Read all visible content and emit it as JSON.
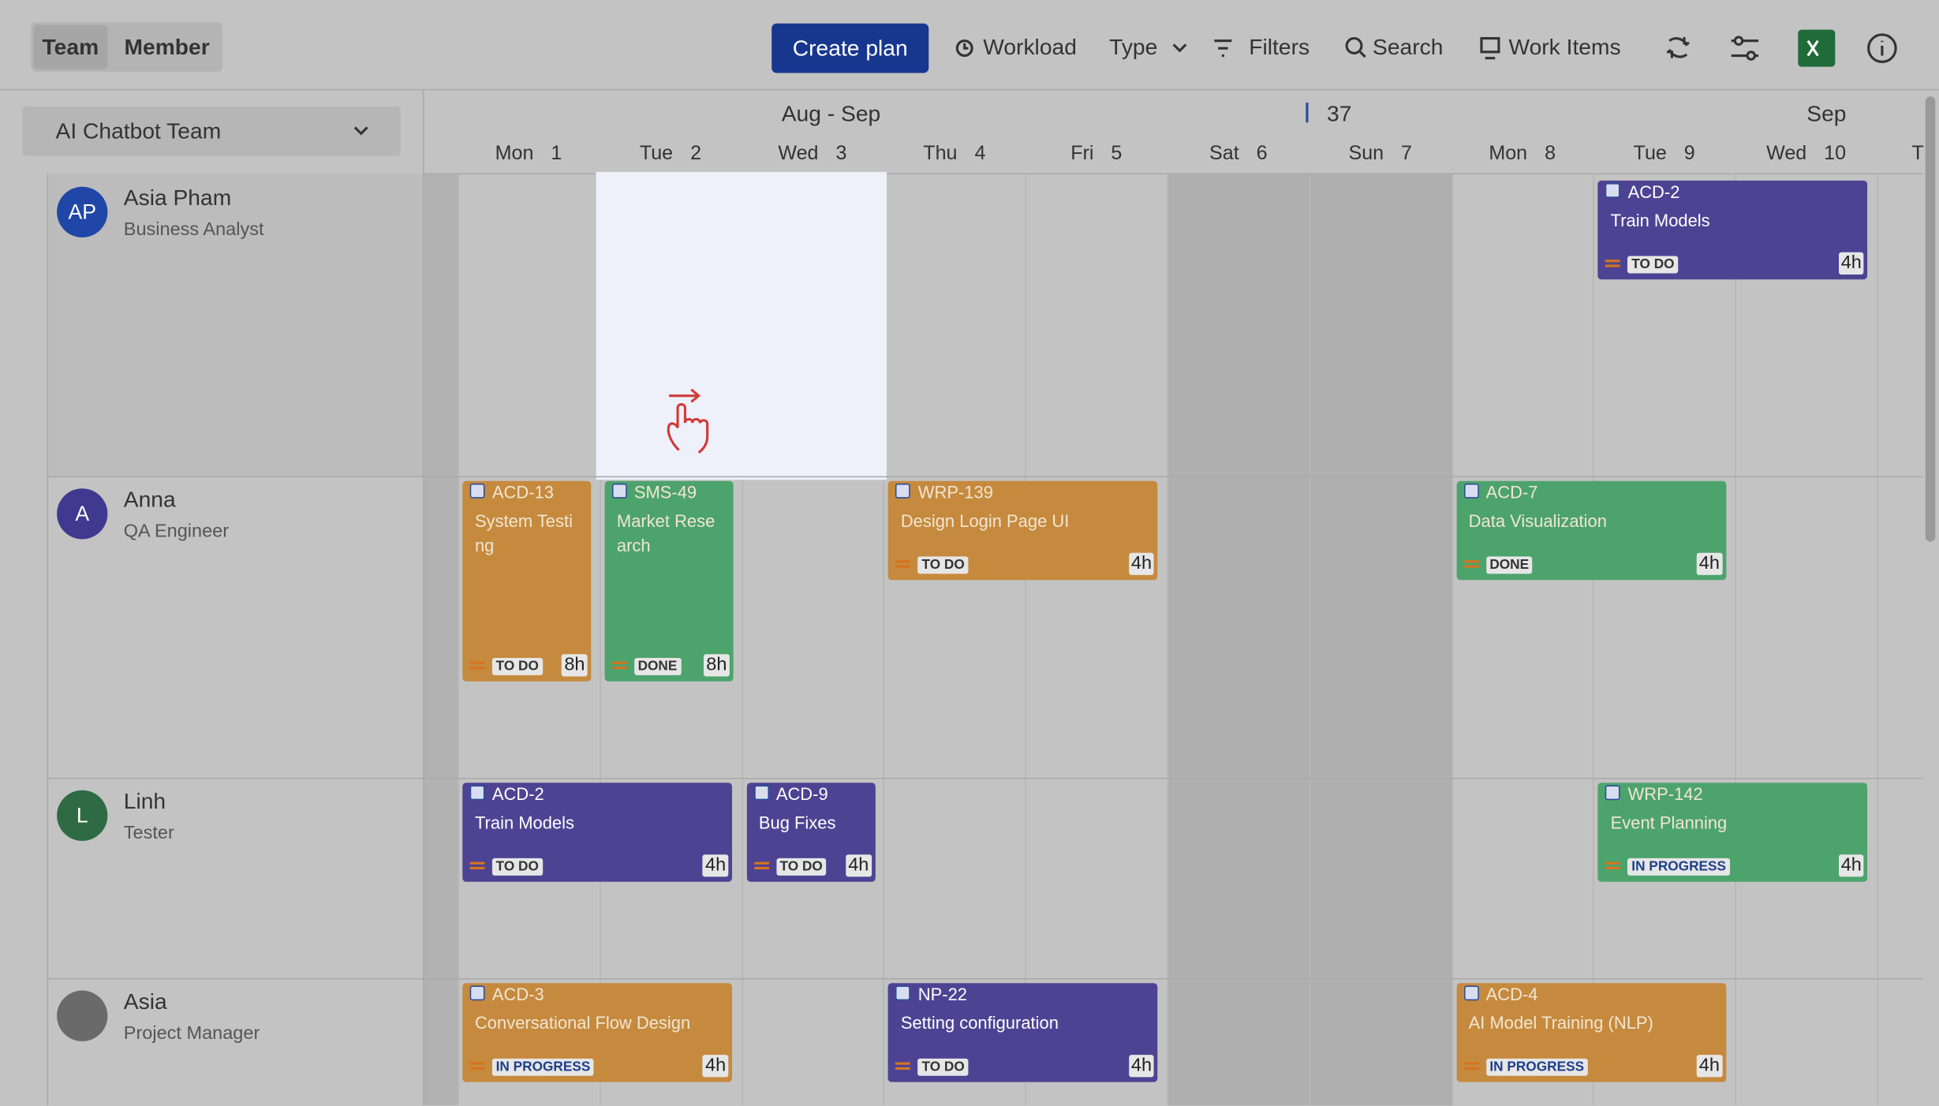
{
  "toolbar": {
    "tabs": [
      "Team",
      "Member"
    ],
    "create": "Create plan",
    "workload": "Workload",
    "type": "Type",
    "filters": "Filters",
    "search": "Search",
    "work_items": "Work Items"
  },
  "team": "AI Chatbot Team",
  "header": {
    "month": "Aug - Sep",
    "week": 37,
    "month2": "Sep",
    "days": [
      {
        "dow": "Mon",
        "d": 1
      },
      {
        "dow": "Tue",
        "d": 2
      },
      {
        "dow": "Wed",
        "d": 3
      },
      {
        "dow": "Thu",
        "d": 4
      },
      {
        "dow": "Fri",
        "d": 5
      },
      {
        "dow": "Sat",
        "d": 6
      },
      {
        "dow": "Sun",
        "d": 7
      },
      {
        "dow": "Mon",
        "d": 8
      },
      {
        "dow": "Tue",
        "d": 9
      },
      {
        "dow": "Wed",
        "d": 10
      },
      {
        "dow": "T"
      }
    ]
  },
  "members": [
    {
      "initials": "AP",
      "name": "Asia Pham",
      "role": "Business Analyst",
      "tasks": [
        {
          "key": "ACD-2",
          "title": "Train Models",
          "status": "TO DO",
          "hours": "4h"
        }
      ]
    },
    {
      "initials": "A",
      "name": "Anna",
      "role": "QA Engineer",
      "tasks": [
        {
          "key": "ACD-13",
          "title": "System Testing",
          "status": "TO DO",
          "hours": "8h"
        },
        {
          "key": "SMS-49",
          "title": "Market Research",
          "status": "DONE",
          "hours": "8h"
        },
        {
          "key": "WRP-139",
          "title": "Design Login Page UI",
          "status": "TO DO",
          "hours": "4h"
        },
        {
          "key": "ACD-7",
          "title": "Data Visualization",
          "status": "DONE",
          "hours": "4h"
        }
      ]
    },
    {
      "initials": "L",
      "name": "Linh",
      "role": "Tester",
      "tasks": [
        {
          "key": "ACD-2",
          "title": "Train Models",
          "status": "TO DO",
          "hours": "4h"
        },
        {
          "key": "ACD-9",
          "title": "Bug Fixes",
          "status": "TO DO",
          "hours": "4h"
        },
        {
          "key": "WRP-142",
          "title": "Event Planning",
          "status": "IN PROGRESS",
          "hours": "4h"
        }
      ]
    },
    {
      "name": "Asia",
      "role": "Project Manager",
      "tasks": [
        {
          "key": "ACD-3",
          "title": "Conversational Flow Design",
          "status": "IN PROGRESS",
          "hours": "4h"
        },
        {
          "key": "NP-22",
          "title": "Setting configuration",
          "status": "TO DO",
          "hours": "4h"
        },
        {
          "key": "ACD-4",
          "title": "AI Model Training (NLP)",
          "status": "IN PROGRESS",
          "hours": "4h"
        }
      ]
    }
  ]
}
